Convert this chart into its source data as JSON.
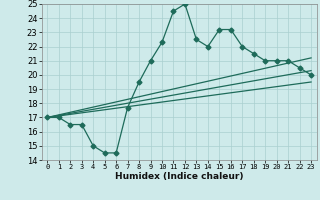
{
  "xlabel": "Humidex (Indice chaleur)",
  "xlim": [
    -0.5,
    23.5
  ],
  "ylim": [
    14,
    25
  ],
  "xticks": [
    0,
    1,
    2,
    3,
    4,
    5,
    6,
    7,
    8,
    9,
    10,
    11,
    12,
    13,
    14,
    15,
    16,
    17,
    18,
    19,
    20,
    21,
    22,
    23
  ],
  "yticks": [
    14,
    15,
    16,
    17,
    18,
    19,
    20,
    21,
    22,
    23,
    24,
    25
  ],
  "bg_color": "#ceeaea",
  "grid_color": "#aacfcf",
  "line_color": "#1e6b5a",
  "series1_x": [
    0,
    1,
    2,
    3,
    4,
    5,
    6,
    7,
    8,
    9,
    10,
    11,
    12,
    13,
    14,
    15,
    16,
    17,
    18,
    19,
    20,
    21,
    22,
    23
  ],
  "series1_y": [
    17,
    17,
    16.5,
    16.5,
    15,
    14.5,
    14.5,
    17.7,
    19.5,
    21.0,
    22.3,
    24.5,
    25,
    22.5,
    22,
    23.2,
    23.2,
    22,
    21.5,
    21,
    21,
    21,
    20.5,
    20
  ],
  "series2_x": [
    0,
    23
  ],
  "series2_y": [
    17,
    20.3
  ],
  "series3_x": [
    0,
    23
  ],
  "series3_y": [
    17,
    19.5
  ],
  "series4_x": [
    0,
    23
  ],
  "series4_y": [
    17,
    21.2
  ],
  "marker_size": 2.5,
  "line_width": 0.9
}
